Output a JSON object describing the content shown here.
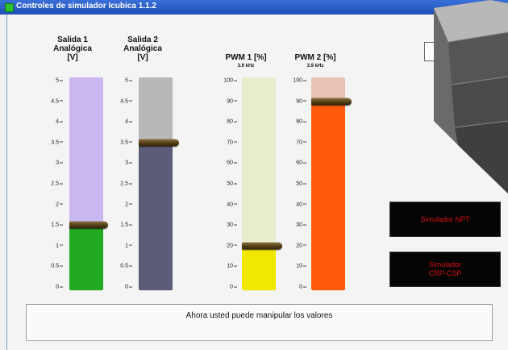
{
  "window": {
    "title": "Controles de simulador Icubica 1.1.2"
  },
  "colors": {
    "s1_track": "#c9b8f0",
    "s1_fill": "#22aa22",
    "s2_track": "#b8b8b8",
    "s2_fill": "#5c5c78",
    "p1_track": "#e9eccd",
    "p1_fill": "#f0e800",
    "p2_track": "#e8c2b2",
    "p2_fill": "#ff5a0a"
  },
  "gauges": [
    {
      "label1": "Salida 1",
      "label2": "Analógica",
      "label3": "[V]",
      "value": 1.5,
      "max": 5,
      "ticks": [
        "5",
        "4.5",
        "4",
        "3.5",
        "3",
        "2.5",
        "2",
        "1.5",
        "1",
        "0.5",
        "0"
      ]
    },
    {
      "label1": "Salida 2",
      "label2": "Analógica",
      "label3": "[V]",
      "value": 3.5,
      "max": 5,
      "ticks": [
        "5",
        "4.5",
        "4",
        "3.5",
        "3",
        "2.5",
        "2",
        "1.5",
        "1",
        "0.5",
        "0"
      ]
    },
    {
      "label1": "PWM 1 [%]",
      "sub": "3.9 kHz",
      "value": 20,
      "max": 100,
      "ticks": [
        "100",
        "90",
        "80",
        "70",
        "60",
        "50",
        "40",
        "30",
        "20",
        "10",
        "0"
      ]
    },
    {
      "label1": "PWM 2 [%]",
      "sub": "3.9 kHz",
      "value": 90,
      "max": 100,
      "ticks": [
        "100",
        "90",
        "80",
        "70",
        "60",
        "50",
        "40",
        "30",
        "20",
        "10",
        "0"
      ]
    }
  ],
  "buttons": {
    "b1": "Simulador NPT",
    "b2a": "Simulador",
    "b2b": "CRP-CSP"
  },
  "status": {
    "message": "Ahora usted puede manipular los valores"
  }
}
